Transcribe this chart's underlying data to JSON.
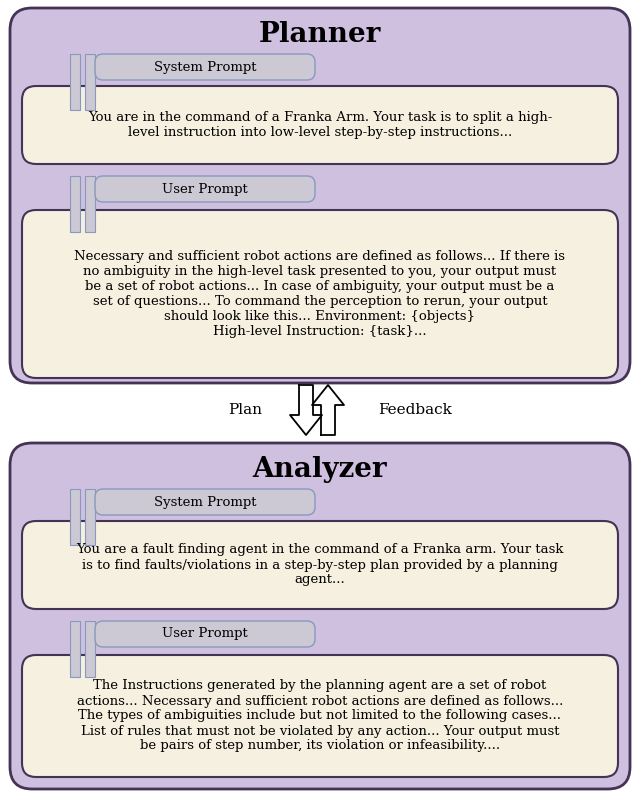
{
  "planner_title": "Planner",
  "analyzer_title": "Analyzer",
  "planner_bg": "#cfc0df",
  "analyzer_bg": "#cfc0df",
  "box_bg": "#f5f0e0",
  "label_bg": "#ccc8d4",
  "label_border": "#8899bb",
  "outer_border": "#443355",
  "plan_label": "Plan",
  "feedback_label": "Feedback",
  "system_prompt_label": "System Prompt",
  "user_prompt_label": "User Prompt",
  "planner_system_text": "You are in the command of a Franka Arm. Your task is to split a high-\nlevel instruction into low-level step-by-step instructions...",
  "planner_user_text": "Necessary and sufficient robot actions are defined as follows... If there is\nno ambiguity in the high-level task presented to you, your output must\nbe a set of robot actions... In case of ambiguity, your output must be a\nset of questions... To command the perception to rerun, your output\nshould look like this... Environment: {objects}\nHigh-level Instruction: {task}...",
  "analyzer_system_text": "You are a fault finding agent in the command of a Franka arm. Your task\nis to find faults/violations in a step-by-step plan provided by a planning\nagent...",
  "analyzer_user_text": "The Instructions generated by the planning agent are a set of robot\nactions... Necessary and sufficient robot actions are defined as follows...\nThe types of ambiguities include but not limited to the following cases...\nList of rules that must not be violated by any action... Your output must\nbe pairs of step number, its violation or infeasibility...."
}
